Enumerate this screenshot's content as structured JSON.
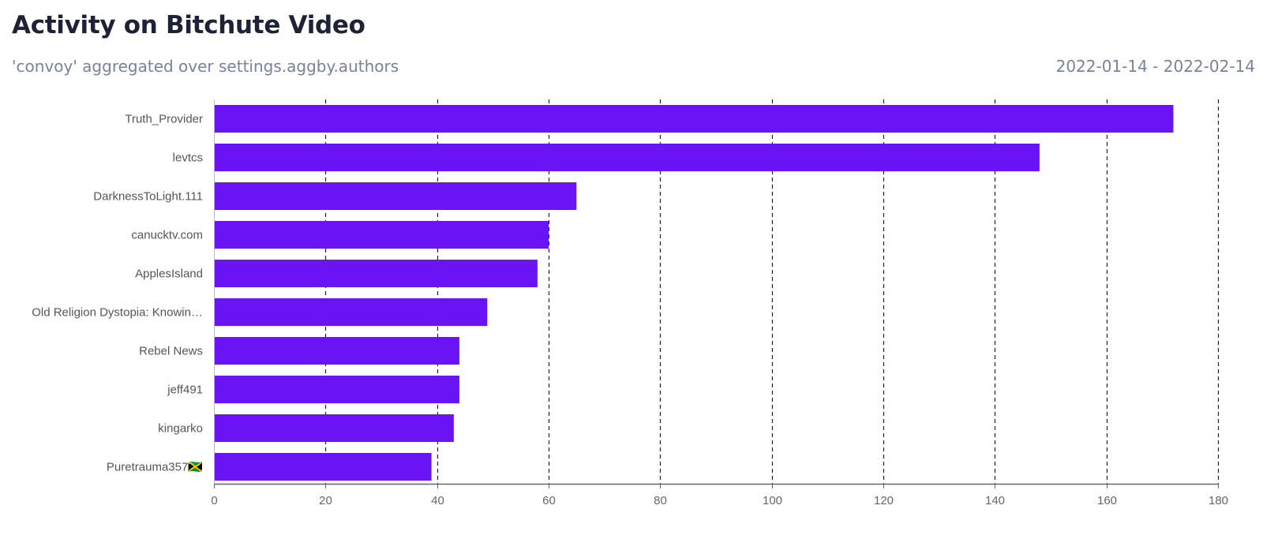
{
  "header": {
    "title": "Activity on Bitchute Video",
    "subtitle": "'convoy' aggregated over settings.aggby.authors",
    "date_range": "2022-01-14 - 2022-02-14"
  },
  "colors": {
    "bar": "#6a13f5",
    "grid": "#222222",
    "axis": "#888888"
  },
  "chart_data": {
    "type": "bar",
    "orientation": "horizontal",
    "title": "Activity on Bitchute Video",
    "subtitle": "'convoy' aggregated over settings.aggby.authors",
    "xlabel": "",
    "ylabel": "",
    "categories": [
      "Truth_Provider",
      "levtcs",
      "DarknessToLight.111",
      "canucktv.com",
      "ApplesIsland",
      "Old Religion Dystopia: Knowin…",
      "Rebel News",
      "jeff491",
      "kingarko",
      "Puretrauma357🇯🇲"
    ],
    "values": [
      172,
      148,
      65,
      60,
      58,
      49,
      44,
      44,
      43,
      39
    ],
    "xlim": [
      0,
      180
    ],
    "xticks": [
      "0",
      "20",
      "40",
      "60",
      "80",
      "100",
      "120",
      "140",
      "160",
      "180"
    ],
    "grid": "vertical dashed",
    "legend": "none"
  }
}
